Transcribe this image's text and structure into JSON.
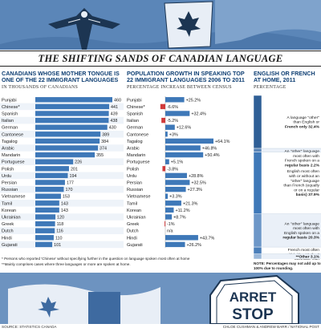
{
  "header": {
    "title": "THE SHIFTING SANDS OF CANADIAN LANGUAGE"
  },
  "sections": {
    "left": {
      "title": "CANADIANS WHOSE MOTHER TONGUE IS ONE OF THE 22 IMMIGRANT LANGUAGES",
      "subtitle": "IN THOUSANDS OF CANADIANS"
    },
    "middle": {
      "title": "POPULATION GROWTH IN SPEAKING TOP 22 IMMIGRANT LANGUAGES 2006 TO 2011",
      "subtitle": "PERCENTAGE INCREASE BETWEEN CENSUS"
    },
    "right": {
      "title": "ENGLISH OR FRENCH AT HOME, 2011",
      "subtitle": "PERCENTAGE"
    }
  },
  "footnotes": {
    "line1": "* Persons who reported 'Chinese' without specifying further in the question on language spoken most often at home",
    "line2": "**Mainly comprises cases where three languages or more are spoken at home."
  },
  "note": "NOTE: Percentages may not add up to 100% due to rounding.",
  "source": "SOURCE: STATISTICS CANADA",
  "credit": "CHLOE CUSHMAN & ANDREW BARR / NATIONAL POST",
  "sign": {
    "text1": "ARRET",
    "text2": "STOP"
  },
  "colors": {
    "bar_blue": "#3e78b8",
    "bar_red": "#d03a3a",
    "title_blue": "#0f3f73",
    "highlight_row": "#d6e4f2"
  },
  "chart_data": [
    {
      "type": "bar",
      "orientation": "horizontal",
      "categories": [
        "Punjabi",
        "Chinese*",
        "Spanish",
        "Italian",
        "German",
        "Cantonese",
        "Tagalog",
        "Arabic",
        "Mandarin",
        "Portuguese",
        "Polish",
        "Urdu",
        "Persian",
        "Russian",
        "Vietnamese",
        "Tamil",
        "Korean",
        "Ukrainian",
        "Greek",
        "Dutch",
        "Hindi",
        "Gujarati"
      ],
      "values": [
        460,
        441,
        439,
        438,
        430,
        389,
        384,
        374,
        355,
        226,
        201,
        194,
        177,
        170,
        153,
        143,
        143,
        120,
        118,
        116,
        110,
        101
      ],
      "value_labels": [
        "460",
        "441",
        "439",
        "438",
        "430",
        "389",
        "384",
        "374",
        "355",
        "226",
        "201",
        "194",
        "177",
        "170",
        "153",
        "143",
        "143",
        "120",
        "118",
        "116",
        "110",
        "101"
      ]
    },
    {
      "type": "bar",
      "orientation": "horizontal",
      "categories": [
        "Punjabi",
        "Chinese*",
        "Spanish",
        "Italian",
        "German",
        "Cantonese",
        "Tagalog",
        "Arabic",
        "Mandarin",
        "Portuguese",
        "Polish",
        "Urdu",
        "Persian",
        "Russian",
        "Vietnamese",
        "Tamil",
        "Korean",
        "Ukrainian",
        "Greek",
        "Dutch",
        "Hindi",
        "Gujarati"
      ],
      "values": [
        25.2,
        -6.6,
        32.4,
        -5.2,
        12.6,
        3,
        64.1,
        46.8,
        50.4,
        5.1,
        -3.8,
        28.8,
        32.5,
        27.3,
        3.3,
        21.3,
        11.2,
        8.7,
        -1,
        null,
        43.7,
        26.2
      ],
      "value_labels": [
        "+25.2%",
        "-6.6%",
        "+32.4%",
        "-5.2%",
        "+12.6%",
        "+3%",
        "+64.1%",
        "+46.8%",
        "+50.4%",
        "+5.1%",
        "-3.8%",
        "+28.8%",
        "+32.5%",
        "+27.3%",
        "+3.3%",
        "+21.3%",
        "+11.2%",
        "+8.7%",
        "-1%",
        "n/a",
        "+43.7%",
        "+26.2%"
      ]
    },
    {
      "type": "bar",
      "orientation": "stacked-vertical",
      "categories": [
        "A language \"other\" than English or French only",
        "An \"other\" language most often with French spoken on a regular basis",
        "English most often with or without an \"other\" language than French (equally or on a regular basis)",
        "An \"other\" language most often with English spoken on a regular basis",
        "French most often with/without \"other\" language than English (equally or on a regular basis)",
        "**Other"
      ],
      "values": [
        32.4,
        2.2,
        37.9,
        20.3,
        4.2,
        3.1
      ],
      "value_labels": [
        "32.4%",
        "2.2%",
        "37.9%",
        "20.3%",
        "4.2%",
        "3.1%"
      ]
    }
  ]
}
